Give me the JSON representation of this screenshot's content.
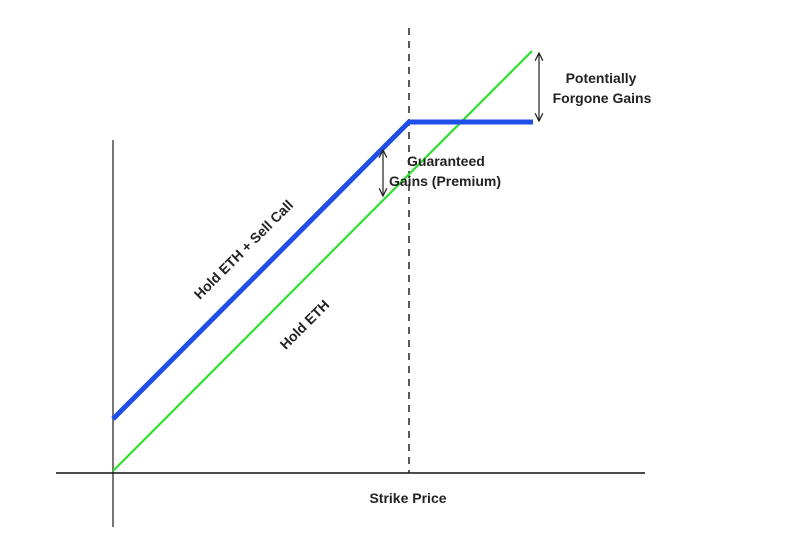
{
  "diagram": {
    "x_axis_label": "Strike Price",
    "series": [
      {
        "name": "Hold ETH + Sell Call",
        "color": "#1f4fe6"
      },
      {
        "name": "Hold ETH",
        "color": "#2ee02e"
      }
    ],
    "annotations": {
      "forgone_line1": "Potentially",
      "forgone_line2": "Forgone Gains",
      "guaranteed_line1": "Guaranteed",
      "guaranteed_line2": "Gains (Premium)"
    }
  }
}
